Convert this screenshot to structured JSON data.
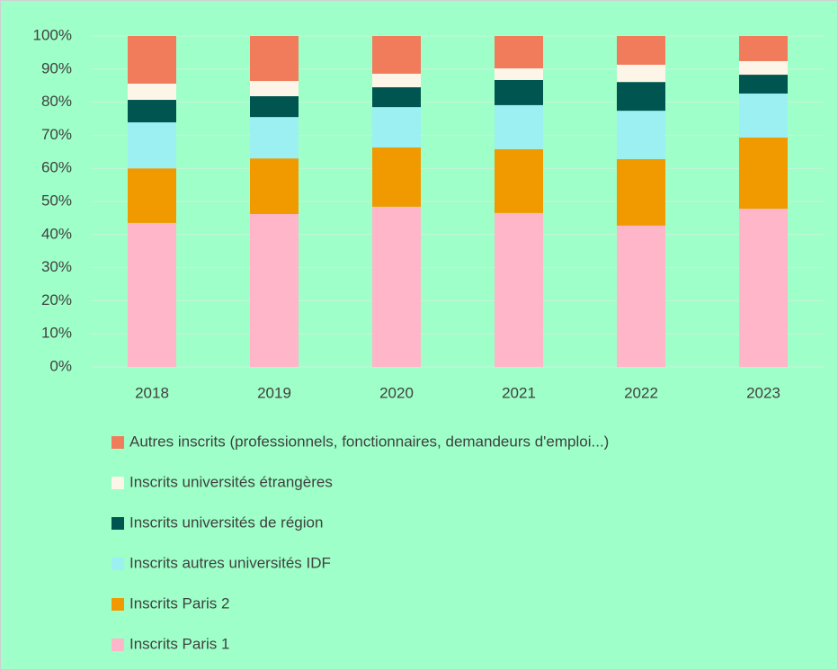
{
  "chart_data": {
    "type": "stacked_bar",
    "categories": [
      "2018",
      "2019",
      "2020",
      "2021",
      "2022",
      "2023"
    ],
    "series": [
      {
        "name": "Inscrits Paris 1",
        "color": "#ffb6c9",
        "values": [
          43.5,
          46.2,
          48.4,
          46.5,
          42.7,
          47.8
        ]
      },
      {
        "name": "Inscrits Paris 2",
        "color": "#f09a00",
        "values": [
          16.5,
          16.8,
          17.9,
          19.3,
          20.1,
          21.5
        ]
      },
      {
        "name": "Inscrits autres universités IDF",
        "color": "#9cf0f2",
        "values": [
          13.9,
          12.5,
          12.2,
          13.3,
          14.6,
          13.3
        ]
      },
      {
        "name": "Inscrits universités de région",
        "color": "#005550",
        "values": [
          6.8,
          6.3,
          6.0,
          7.6,
          8.7,
          5.7
        ]
      },
      {
        "name": "Inscrits universités étrangères",
        "color": "#fdf6e8",
        "values": [
          4.9,
          4.6,
          4.1,
          3.5,
          5.2,
          4.1
        ]
      },
      {
        "name": "Autres inscrits (professionnels, fonctionnaires, demandeurs d'emploi...)",
        "color": "#f07c5c",
        "values": [
          14.4,
          13.6,
          11.4,
          9.8,
          8.7,
          7.6
        ]
      }
    ],
    "ylim": [
      0,
      100
    ],
    "yticks": [
      {
        "value": 0,
        "label": "0%"
      },
      {
        "value": 10,
        "label": "10%"
      },
      {
        "value": 20,
        "label": "20%"
      },
      {
        "value": 30,
        "label": "30%"
      },
      {
        "value": 40,
        "label": "40%"
      },
      {
        "value": 50,
        "label": "50%"
      },
      {
        "value": 60,
        "label": "60%"
      },
      {
        "value": 70,
        "label": "70%"
      },
      {
        "value": 80,
        "label": "80%"
      },
      {
        "value": 90,
        "label": "90%"
      },
      {
        "value": 100,
        "label": "100%"
      }
    ],
    "grid": true,
    "legend": "bottom",
    "background": "#9effc8"
  }
}
